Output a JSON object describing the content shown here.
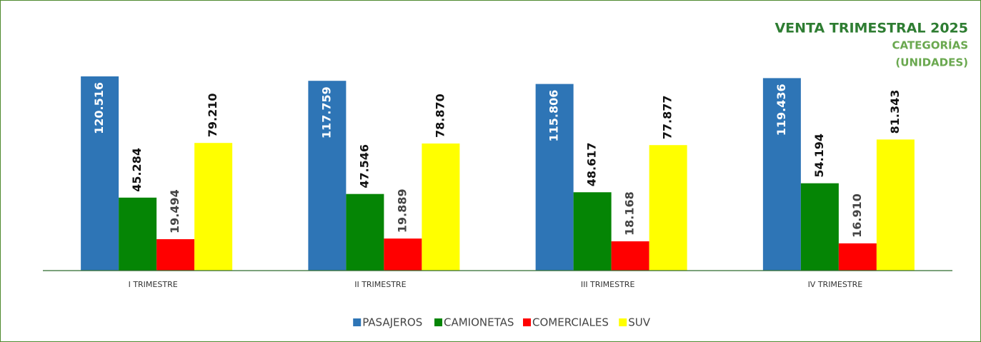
{
  "chart_data": {
    "type": "bar",
    "title": "VENTA TRIMESTRAL 2025",
    "subtitle": [
      "CATEGORÍAS",
      "(UNIDADES)"
    ],
    "categories": [
      "I TRIMESTRE",
      "II TRIMESTRE",
      "III TRIMESTRE",
      "IV TRIMESTRE"
    ],
    "series": [
      {
        "name": "PASAJEROS",
        "color": "#2e75b6",
        "values": [
          120516,
          117759,
          115806,
          119436
        ],
        "value_labels": [
          "120.516",
          "117.759",
          "115.806",
          "119.436"
        ]
      },
      {
        "name": "CAMIONETAS",
        "color": "#058505",
        "values": [
          45284,
          47546,
          48617,
          54194
        ],
        "value_labels": [
          "45.284",
          "47.546",
          "48.617",
          "54.194"
        ]
      },
      {
        "name": "COMERCIALES",
        "color": "#ff0000",
        "values": [
          19494,
          19889,
          18168,
          16910
        ],
        "value_labels": [
          "19.494",
          "19.889",
          "18.168",
          "16.910"
        ]
      },
      {
        "name": "SUV",
        "color": "#ffff00",
        "values": [
          79210,
          78870,
          77877,
          81343
        ],
        "value_labels": [
          "79.210",
          "78.870",
          "77.877",
          "81.343"
        ]
      }
    ],
    "ylim": [
      0,
      140000
    ]
  }
}
